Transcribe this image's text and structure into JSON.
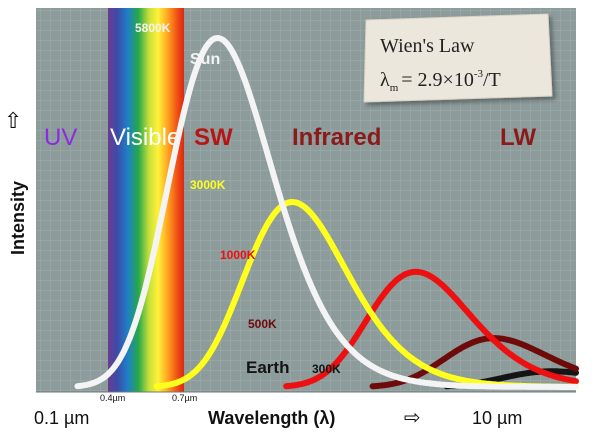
{
  "chart_data": {
    "type": "line",
    "xlabel": "Wavelength (λ)",
    "ylabel": "Intensity",
    "x_ticks": [
      "0.1 µm",
      "10 µm"
    ],
    "band_ticks": [
      "0.4µm",
      "0.7µm"
    ],
    "x_arrow": "⇨",
    "y_arrow": "⇧",
    "regions": [
      {
        "name": "UV",
        "color": "#8a2be2"
      },
      {
        "name": "Visible",
        "color": "#ffffff"
      },
      {
        "name": "SW",
        "color": "#b81414"
      },
      {
        "name": "Infrared",
        "color": "#8b1a1a"
      },
      {
        "name": "LW",
        "color": "#8b1a1a"
      }
    ],
    "series": [
      {
        "name": "5800K",
        "color": "#f4f4f4",
        "peak": 0.5,
        "peak_level": 1.0
      },
      {
        "name": "3000K",
        "color": "#ffff1e",
        "peak": 0.97,
        "peak_level": 0.53
      },
      {
        "name": "1000K",
        "color": "#ee1010",
        "peak": 2.9,
        "peak_level": 0.33
      },
      {
        "name": "500K",
        "color": "#6e0a0a",
        "peak": 5.8,
        "peak_level": 0.14
      },
      {
        "name": "Earth 300K",
        "color": "#141414",
        "peak": 9.7,
        "peak_level": 0.045
      }
    ],
    "series_labels": {
      "sun": "Sun",
      "earth": "Earth",
      "earth_temp": "300K"
    },
    "note": {
      "title": "Wien's Law",
      "lhs": "λ",
      "lhs_sub": "m",
      "rhs": "= 2.9×10",
      "rhs_sup": "-3",
      "rhs_tail": "/T"
    }
  }
}
